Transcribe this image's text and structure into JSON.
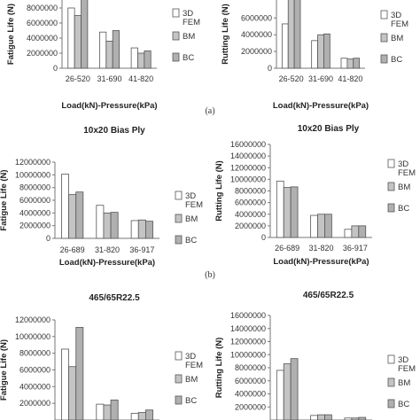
{
  "panel_labels": [
    "(a)",
    "(b)"
  ],
  "legend": {
    "entries": [
      "3D FEM",
      "BM",
      "BC"
    ],
    "colors": [
      "#ffffff",
      "#c4c4c4",
      "#b0b0b0"
    ]
  },
  "chart_data": [
    {
      "type": "bar",
      "title": "",
      "xlabel": "Load(kN)-Pressure(kPa)",
      "ylabel": "Fatigue Life (N)",
      "categories": [
        "26-520",
        "31-690",
        "41-820"
      ],
      "series": [
        {
          "name": "3D FEM",
          "values": [
            8000000,
            4800000,
            2700000
          ]
        },
        {
          "name": "BM",
          "values": [
            7000000,
            3600000,
            2000000
          ]
        },
        {
          "name": "BC",
          "values": [
            9500000,
            5000000,
            2300000
          ]
        }
      ],
      "yticks": [
        0,
        2000000,
        4000000,
        6000000,
        8000000
      ],
      "ylim": [
        0,
        10000000
      ],
      "legend": "right"
    },
    {
      "type": "bar",
      "title": "",
      "xlabel": "Load(kN)-Pressure(kPa)",
      "ylabel": "Rutting Life (N)",
      "categories": [
        "26-520",
        "31-690",
        "41-820"
      ],
      "series": [
        {
          "name": "3D FEM",
          "values": [
            5300000,
            3300000,
            1200000
          ]
        },
        {
          "name": "BM",
          "values": [
            8600000,
            4000000,
            1100000
          ]
        },
        {
          "name": "BC",
          "values": [
            9000000,
            4100000,
            1200000
          ]
        }
      ],
      "yticks": [
        0,
        2000000,
        4000000,
        6000000,
        8000000
      ],
      "ylim": [
        0,
        9000000
      ],
      "legend": "right"
    },
    {
      "type": "bar",
      "title": "10x20 Bias Ply",
      "xlabel": "Load(kN)-Pressure(kPa)",
      "ylabel": "Fatigue Life (N)",
      "categories": [
        "26-689",
        "31-820",
        "36-917"
      ],
      "series": [
        {
          "name": "3D FEM",
          "values": [
            10100000,
            5200000,
            2800000
          ]
        },
        {
          "name": "BM",
          "values": [
            6900000,
            4000000,
            2900000
          ]
        },
        {
          "name": "BC",
          "values": [
            7300000,
            4100000,
            2700000
          ]
        }
      ],
      "yticks": [
        0,
        2000000,
        4000000,
        6000000,
        8000000,
        10000000,
        12000000
      ],
      "ylim": [
        0,
        12000000
      ],
      "legend": "right"
    },
    {
      "type": "bar",
      "title": "10x20 Bias Ply",
      "xlabel": "Load(kN)-Pressure(kPa)",
      "ylabel": "Rutting Life (N)",
      "categories": [
        "26-689",
        "31-820",
        "36-917"
      ],
      "series": [
        {
          "name": "3D FEM",
          "values": [
            9700000,
            3800000,
            1400000
          ]
        },
        {
          "name": "BM",
          "values": [
            8600000,
            4000000,
            2000000
          ]
        },
        {
          "name": "BC",
          "values": [
            8700000,
            4000000,
            2000000
          ]
        }
      ],
      "yticks": [
        0,
        2000000,
        4000000,
        6000000,
        8000000,
        10000000,
        12000000,
        14000000,
        16000000
      ],
      "ylim": [
        0,
        16000000
      ],
      "legend": "right"
    },
    {
      "type": "bar",
      "title": "465/65R22.5",
      "xlabel": "",
      "ylabel": "Fatigue Life (N)",
      "categories": [
        "",
        "",
        ""
      ],
      "series": [
        {
          "name": "3D FEM",
          "values": [
            8500000,
            1900000,
            800000
          ]
        },
        {
          "name": "BM",
          "values": [
            6400000,
            1800000,
            900000
          ]
        },
        {
          "name": "BC",
          "values": [
            11100000,
            2400000,
            1200000
          ]
        }
      ],
      "yticks": [
        2000000,
        4000000,
        6000000,
        8000000,
        10000000,
        12000000
      ],
      "ylim": [
        0,
        12000000
      ],
      "legend": "right"
    },
    {
      "type": "bar",
      "title": "465/65R22.5",
      "xlabel": "",
      "ylabel": "Rutting Life (N)",
      "categories": [
        "",
        "",
        ""
      ],
      "series": [
        {
          "name": "3D FEM",
          "values": [
            7600000,
            700000,
            300000
          ]
        },
        {
          "name": "BM",
          "values": [
            8600000,
            800000,
            300000
          ]
        },
        {
          "name": "BC",
          "values": [
            9400000,
            800000,
            400000
          ]
        }
      ],
      "yticks": [
        2000000,
        4000000,
        6000000,
        8000000,
        10000000,
        12000000,
        14000000,
        16000000
      ],
      "ylim": [
        0,
        16000000
      ],
      "legend": "right"
    }
  ]
}
